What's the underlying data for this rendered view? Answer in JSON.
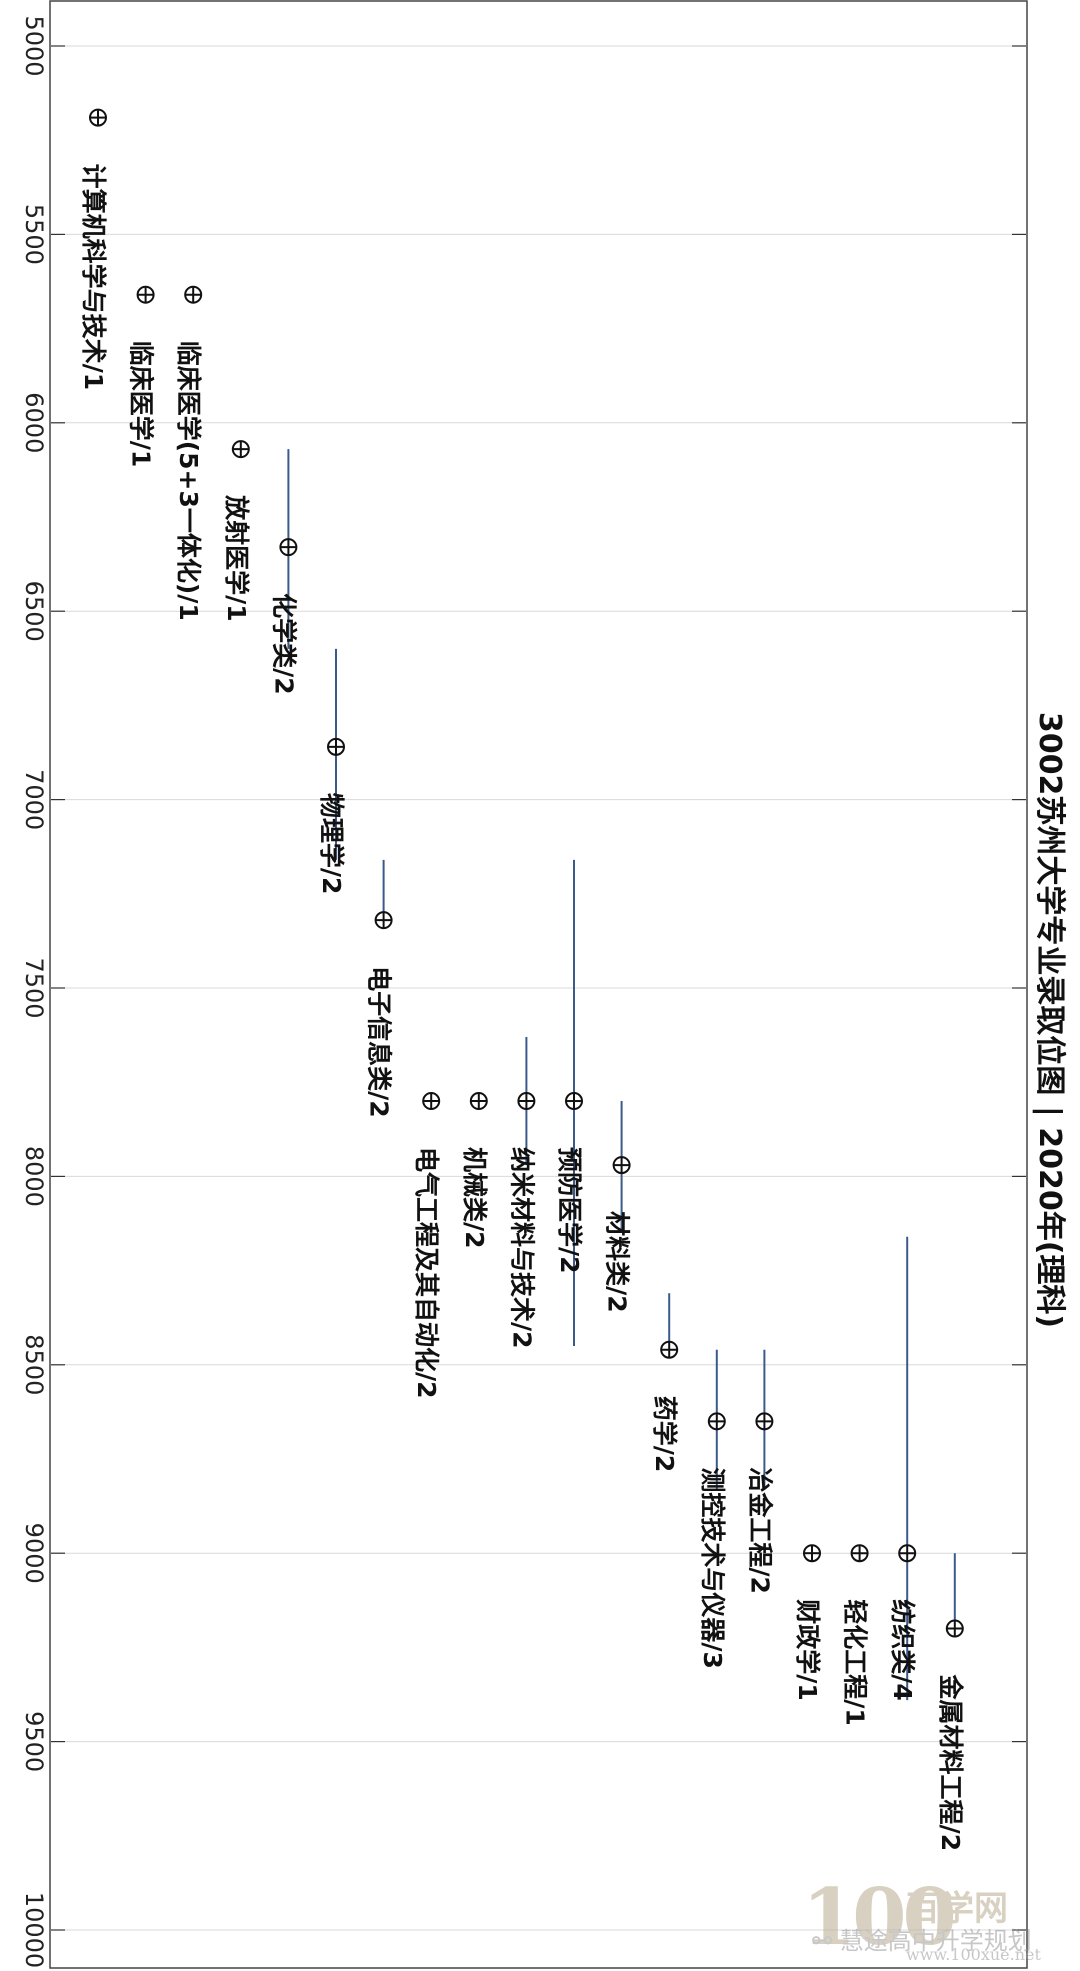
{
  "chart_data": {
    "type": "scatter",
    "title": "3002苏州大学专业录取位图 | 2020年(理科)",
    "orientation": "rotated-90",
    "value_axis": {
      "ticks": [
        5000,
        5500,
        6000,
        6500,
        7000,
        7500,
        8000,
        8500,
        9000,
        9500,
        10000
      ],
      "range": [
        5000,
        10000
      ],
      "grid": true
    },
    "points": [
      {
        "label": "计算机科学与技术/1",
        "rank": 5190
      },
      {
        "label": "临床医学/1",
        "rank": 5660
      },
      {
        "label": "临床医学(5+3一体化)/1",
        "rank": 5660
      },
      {
        "label": "放射医学/1",
        "rank": 6070
      },
      {
        "label": "化学类/2",
        "rank": 6330,
        "min": 6070,
        "max": 6600
      },
      {
        "label": "物理学/2",
        "rank": 6860,
        "min": 6600,
        "max": 7160
      },
      {
        "label": "电子信息类/2",
        "rank": 7320,
        "min": 7160,
        "max": 7320
      },
      {
        "label": "电气工程及其自动化/2",
        "rank": 7800
      },
      {
        "label": "机械类/2",
        "rank": 7800
      },
      {
        "label": "纳米材料与技术/2",
        "rank": 7800,
        "min": 7630,
        "max": 7970
      },
      {
        "label": "预防医学/2",
        "rank": 7800,
        "min": 7160,
        "max": 8450
      },
      {
        "label": "材料类/2",
        "rank": 7970,
        "min": 7800,
        "max": 8150
      },
      {
        "label": "药学/2",
        "rank": 8460,
        "min": 8310,
        "max": 8460
      },
      {
        "label": "测控技术与仪器/3",
        "rank": 8650,
        "min": 8460,
        "max": 8830
      },
      {
        "label": "冶金工程/2",
        "rank": 8650,
        "min": 8460,
        "max": 8830
      },
      {
        "label": "财政学/1",
        "rank": 9000
      },
      {
        "label": "轻化工程/1",
        "rank": 9000
      },
      {
        "label": "纺织类/4",
        "rank": 9000,
        "min": 8160,
        "max": 9390
      },
      {
        "label": "金属材料工程/2",
        "rank": 9200,
        "min": 9000,
        "max": 9200
      }
    ]
  },
  "watermark": {
    "logo_number": "100",
    "site_name": "百学网",
    "account": "慧途高中升学规划",
    "url": "www.100xue.net"
  }
}
